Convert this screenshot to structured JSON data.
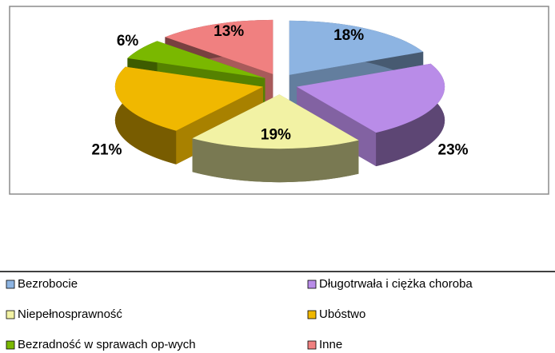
{
  "chart_data": {
    "type": "pie3d",
    "categories": [
      "Bezrobocie",
      "Długotrwała i ciężka choroba",
      "Niepełnosprawność",
      "Ubóstwo",
      "Bezradność w sprawach op-wych",
      "Inne"
    ],
    "values": [
      18,
      23,
      19,
      21,
      6,
      13
    ],
    "value_labels": [
      "18%",
      "23%",
      "19%",
      "21%",
      "6%",
      "13%"
    ],
    "colors": [
      "#8db4e2",
      "#b98ce8",
      "#f2f2a4",
      "#f0b800",
      "#7ab800",
      "#f08080"
    ],
    "legend": "bottom"
  }
}
